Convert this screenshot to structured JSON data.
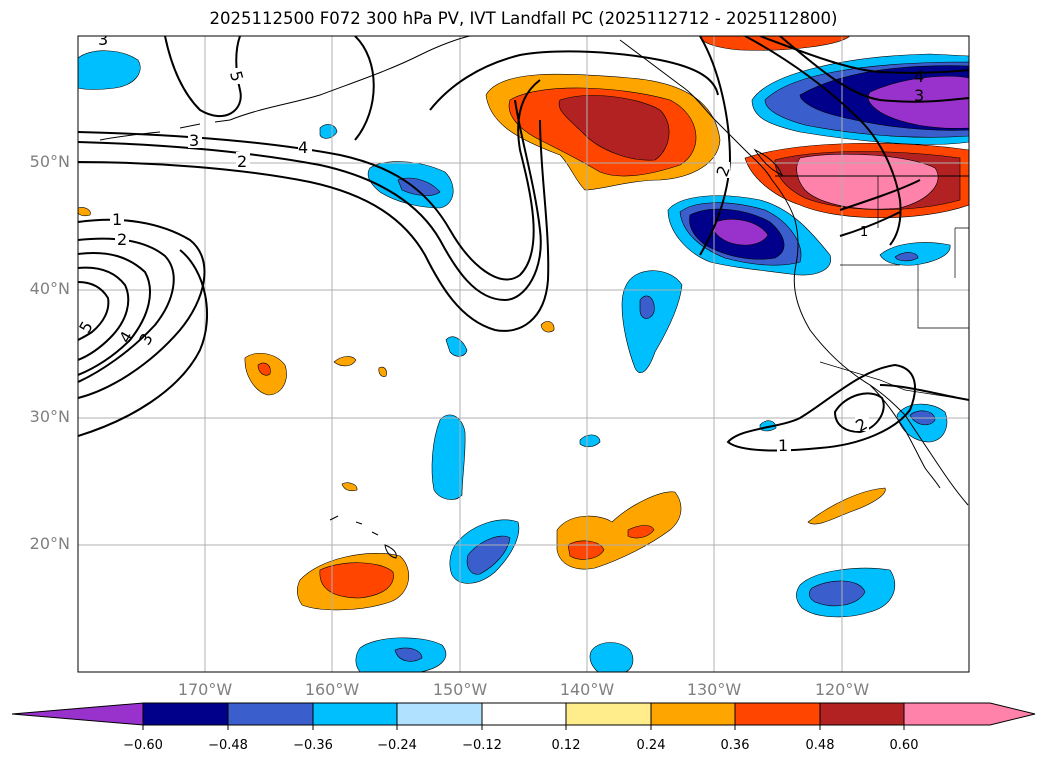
{
  "title": "2025112500 F072 300 hPa PV, IVT Landfall PC (2025112712 - 2025112800)",
  "lat_labels": [
    "50°N",
    "40°N",
    "30°N",
    "20°N"
  ],
  "lon_labels": [
    "170°W",
    "160°W",
    "150°W",
    "140°W",
    "130°W",
    "120°W"
  ],
  "colorbar": {
    "ticks": [
      "−0.60",
      "−0.48",
      "−0.36",
      "−0.24",
      "−0.12",
      "0.12",
      "0.24",
      "0.36",
      "0.48",
      "0.60"
    ],
    "colors": [
      "#9932cc",
      "#00008b",
      "#3a5fcd",
      "#00bfff",
      "#b0e2ff",
      "#ffffff",
      "#ffec8b",
      "#ffa500",
      "#ff4500",
      "#b22222",
      "#ff82ab"
    ]
  },
  "contour_labels": [
    "3",
    "5",
    "3",
    "2",
    "4",
    "2",
    "4",
    "3",
    "1",
    "2",
    "5",
    "4",
    "3",
    "2",
    "1",
    "1"
  ]
}
